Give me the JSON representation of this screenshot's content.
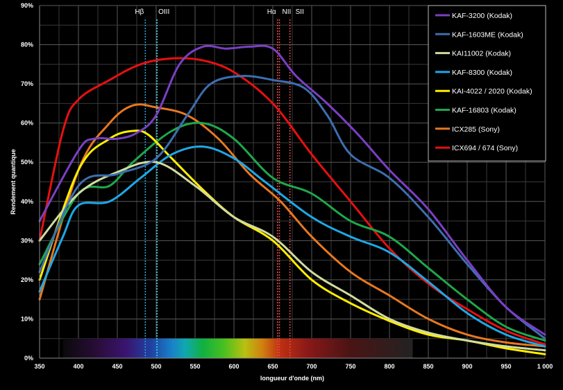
{
  "chart_data": {
    "type": "line",
    "xlabel": "longueur d'onde (nm)",
    "ylabel": "Rendement quantique",
    "xlim": [
      350,
      1000
    ],
    "ylim": [
      0,
      90
    ],
    "x_ticks": [
      "350",
      "400",
      "450",
      "500",
      "550",
      "600",
      "650",
      "700",
      "750",
      "800",
      "850",
      "900",
      "950",
      "1 000"
    ],
    "y_ticks": [
      "0%",
      "10%",
      "20%",
      "30%",
      "40%",
      "50%",
      "60%",
      "70%",
      "80%",
      "90%"
    ],
    "grid": true,
    "legend_position": "top-right",
    "spectrum_band": [
      380,
      830
    ],
    "markers": [
      {
        "label": "Hβ",
        "x": 486,
        "color": "#2e9fd8"
      },
      {
        "label": "OIII",
        "x": 501,
        "color": "#49d3e6"
      },
      {
        "label": "Hα",
        "x": 656,
        "color": "#e04848"
      },
      {
        "label": "NII",
        "x": 658.5,
        "color": "#e04848"
      },
      {
        "label": "SII",
        "x": 672,
        "color": "#e04848"
      }
    ],
    "series": [
      {
        "name": "KAF-3200 (Kodak)",
        "color": "#7b3fc4",
        "x": [
          350,
          400,
          420,
          450,
          475,
          500,
          530,
          560,
          590,
          620,
          650,
          680,
          720,
          760,
          800,
          850,
          900,
          950,
          1000
        ],
        "y": [
          35,
          53,
          56,
          56,
          57.5,
          62,
          75,
          79.5,
          79,
          79.5,
          79,
          72,
          65,
          57,
          48,
          38,
          25,
          13,
          6
        ]
      },
      {
        "name": "KAF-1603ME (Kodak)",
        "color": "#3d6eb0",
        "x": [
          350,
          400,
          450,
          500,
          540,
          570,
          610,
          650,
          690,
          720,
          750,
          800,
          850,
          900,
          950,
          1000
        ],
        "y": [
          22,
          44,
          47,
          51,
          62,
          70,
          72,
          71,
          69,
          62,
          52,
          46,
          36,
          24,
          13,
          5
        ]
      },
      {
        "name": "KAI11002 (Kodak)",
        "color": "#d0dca0",
        "x": [
          350,
          400,
          450,
          500,
          550,
          600,
          650,
          700,
          750,
          800,
          850,
          900,
          950,
          1000
        ],
        "y": [
          30,
          42,
          47.5,
          50,
          44,
          36,
          31,
          22,
          16,
          10,
          6.5,
          4.5,
          3,
          2
        ]
      },
      {
        "name": "KAF-8300 (Kodak)",
        "color": "#1ea8e6",
        "x": [
          350,
          380,
          400,
          440,
          480,
          520,
          560,
          600,
          640,
          700,
          750,
          800,
          850,
          900,
          950,
          1000
        ],
        "y": [
          17,
          31,
          39,
          40,
          46,
          52,
          54,
          51,
          45,
          36,
          31,
          27,
          19.5,
          11.5,
          6,
          3
        ]
      },
      {
        "name": "KAI-4022 / 2020 (Kodak)",
        "color": "#ffee00",
        "x": [
          350,
          400,
          440,
          470,
          490,
          520,
          560,
          600,
          650,
          700,
          750,
          800,
          850,
          900,
          950,
          1000
        ],
        "y": [
          20,
          48,
          56,
          58,
          57,
          51,
          43,
          36,
          30,
          20,
          14,
          9.5,
          6,
          4.5,
          2.5,
          1
        ]
      },
      {
        "name": "KAF-16803 (Kodak)",
        "color": "#1ea84a",
        "x": [
          350,
          400,
          440,
          470,
          520,
          560,
          600,
          650,
          700,
          750,
          800,
          850,
          900,
          950,
          1000
        ],
        "y": [
          24,
          42,
          44,
          50,
          58,
          60,
          56,
          46,
          42,
          35,
          31,
          23,
          15,
          8,
          4.5
        ]
      },
      {
        "name": "ICX285 (Sony)",
        "color": "#e87820",
        "x": [
          350,
          400,
          440,
          470,
          500,
          540,
          580,
          620,
          660,
          700,
          750,
          800,
          850,
          900,
          950,
          1000
        ],
        "y": [
          15,
          48,
          60,
          64.5,
          64,
          62,
          56,
          47,
          40,
          31,
          22,
          16,
          10,
          6,
          4,
          3
        ]
      },
      {
        "name": "ICX694 / 674 (Sony)",
        "color": "#e81010",
        "x": [
          350,
          380,
          400,
          440,
          480,
          520,
          560,
          600,
          650,
          700,
          750,
          800,
          850,
          900,
          950,
          1000
        ],
        "y": [
          30,
          58,
          66,
          71,
          75,
          76.5,
          76,
          73,
          65,
          52,
          40,
          28,
          19,
          12.5,
          7,
          3.5
        ]
      }
    ]
  }
}
